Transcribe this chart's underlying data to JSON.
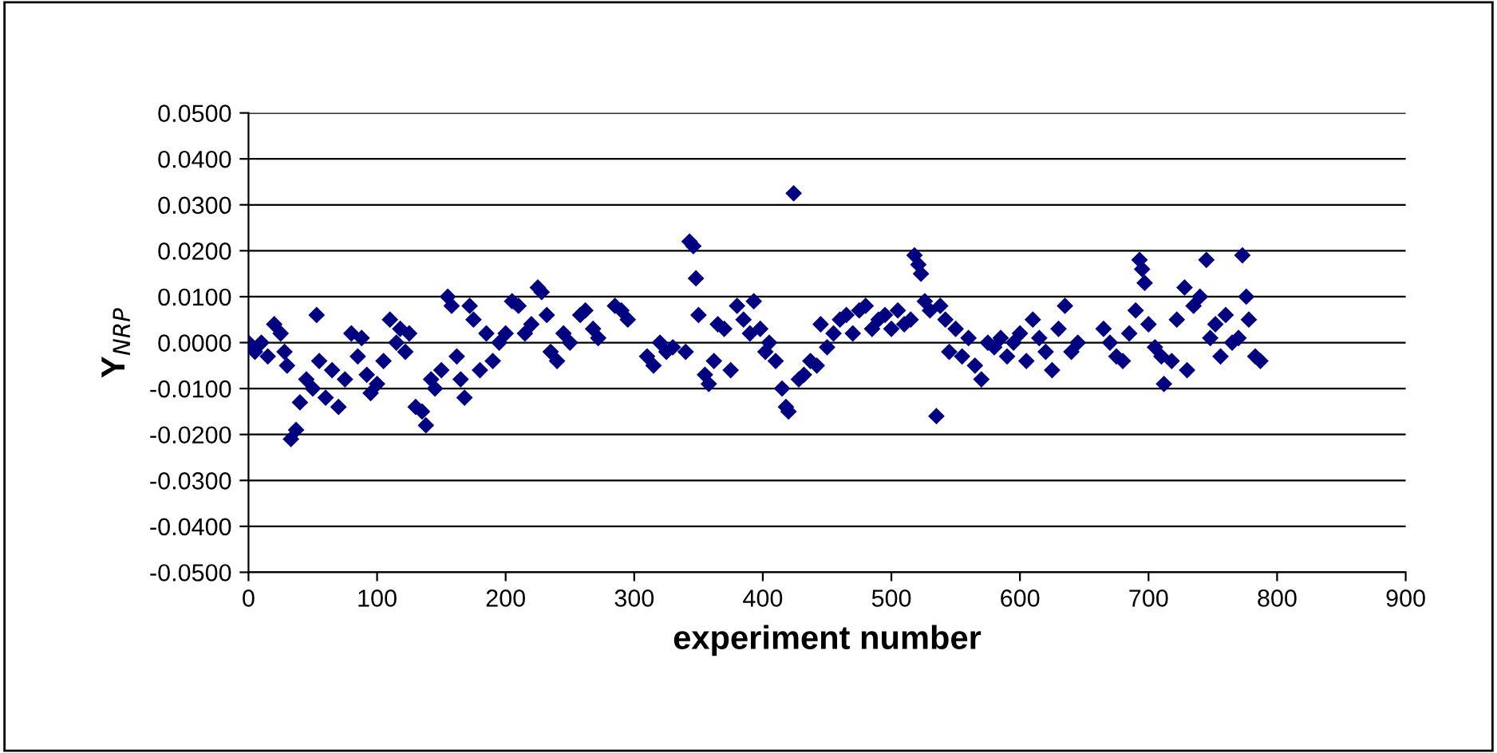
{
  "chart_data": {
    "type": "scatter",
    "xlabel": "experiment number",
    "ylabel": "Y$_{NRP}$",
    "color": "#000080",
    "marker": "diamond",
    "grid": "y",
    "legend": false,
    "x": [
      0,
      5,
      10,
      15,
      20,
      25,
      28,
      30,
      33,
      37,
      40,
      45,
      50,
      53,
      55,
      60,
      65,
      70,
      75,
      80,
      85,
      88,
      92,
      95,
      100,
      105,
      110,
      115,
      118,
      122,
      125,
      130,
      135,
      138,
      142,
      145,
      150,
      155,
      158,
      162,
      165,
      168,
      172,
      175,
      180,
      185,
      190,
      195,
      200,
      205,
      210,
      215,
      220,
      225,
      228,
      232,
      235,
      240,
      245,
      250,
      258,
      262,
      268,
      272,
      285,
      290,
      295,
      310,
      315,
      320,
      325,
      330,
      340,
      343,
      346,
      348,
      350,
      355,
      358,
      362,
      365,
      370,
      375,
      380,
      385,
      390,
      393,
      398,
      402,
      405,
      410,
      415,
      418,
      420,
      424,
      428,
      432,
      437,
      442,
      445,
      450,
      455,
      460,
      465,
      470,
      475,
      480,
      485,
      490,
      495,
      500,
      505,
      510,
      515,
      518,
      521,
      523,
      526,
      530,
      535,
      538,
      542,
      545,
      550,
      555,
      560,
      565,
      570,
      575,
      580,
      585,
      590,
      595,
      600,
      605,
      610,
      615,
      620,
      625,
      630,
      635,
      640,
      645,
      665,
      670,
      675,
      680,
      685,
      690,
      693,
      695,
      697,
      700,
      705,
      710,
      712,
      718,
      722,
      728,
      730,
      735,
      740,
      745,
      748,
      752,
      756,
      760,
      765,
      770,
      773,
      776,
      778,
      783,
      787
    ],
    "values": [
      0.0,
      -0.002,
      0.0,
      -0.003,
      0.004,
      0.002,
      -0.002,
      -0.005,
      -0.021,
      -0.019,
      -0.013,
      -0.008,
      -0.01,
      0.006,
      -0.004,
      -0.012,
      -0.006,
      -0.014,
      -0.008,
      0.002,
      -0.003,
      0.001,
      -0.007,
      -0.011,
      -0.009,
      -0.004,
      0.005,
      0.0,
      0.003,
      -0.002,
      0.002,
      -0.014,
      -0.015,
      -0.018,
      -0.008,
      -0.01,
      -0.006,
      0.01,
      0.008,
      -0.003,
      -0.008,
      -0.012,
      0.008,
      0.005,
      -0.006,
      0.002,
      -0.004,
      0.0,
      0.002,
      0.009,
      0.008,
      0.002,
      0.004,
      0.012,
      0.011,
      0.006,
      -0.002,
      -0.004,
      0.002,
      0.0,
      0.006,
      0.007,
      0.003,
      0.001,
      0.008,
      0.007,
      0.005,
      -0.003,
      -0.005,
      0.0,
      -0.002,
      -0.001,
      -0.002,
      0.022,
      0.021,
      0.014,
      0.006,
      -0.007,
      -0.009,
      -0.004,
      0.004,
      0.003,
      -0.006,
      0.008,
      0.005,
      0.002,
      0.009,
      0.003,
      -0.002,
      0.0,
      -0.004,
      -0.01,
      -0.014,
      -0.015,
      0.0325,
      -0.008,
      -0.007,
      -0.004,
      -0.005,
      0.004,
      -0.001,
      0.002,
      0.005,
      0.006,
      0.002,
      0.007,
      0.008,
      0.003,
      0.005,
      0.006,
      0.003,
      0.007,
      0.004,
      0.005,
      0.019,
      0.017,
      0.015,
      0.009,
      0.007,
      -0.016,
      0.008,
      0.005,
      -0.002,
      0.003,
      -0.003,
      0.001,
      -0.005,
      -0.008,
      0.0,
      -0.001,
      0.001,
      -0.003,
      0.0,
      0.002,
      -0.004,
      0.005,
      0.001,
      -0.002,
      -0.006,
      0.003,
      0.008,
      -0.002,
      0.0,
      0.003,
      0.0,
      -0.003,
      -0.004,
      0.002,
      0.007,
      0.018,
      0.016,
      0.013,
      0.004,
      -0.001,
      -0.003,
      -0.009,
      -0.004,
      0.005,
      0.012,
      -0.006,
      0.008,
      0.01,
      0.018,
      0.001,
      0.004,
      -0.003,
      0.006,
      0.0,
      0.001,
      0.019,
      0.01,
      0.005,
      -0.003,
      -0.004
    ],
    "xlim": [
      0,
      900
    ],
    "xticks": [
      0,
      100,
      200,
      300,
      400,
      500,
      600,
      700,
      800,
      900
    ],
    "ylim": [
      -0.05,
      0.05
    ],
    "yticks": [
      {
        "value": -0.05,
        "label": "-0.0500"
      },
      {
        "value": -0.04,
        "label": "-0.0400"
      },
      {
        "value": -0.03,
        "label": "-0.0300"
      },
      {
        "value": -0.02,
        "label": "-0.0200"
      },
      {
        "value": -0.01,
        "label": "-0.0100"
      },
      {
        "value": 0,
        "label": "0.0000"
      },
      {
        "value": 0.01,
        "label": "0.0100"
      },
      {
        "value": 0.02,
        "label": "0.0200"
      },
      {
        "value": 0.03,
        "label": "0.0300"
      },
      {
        "value": 0.04,
        "label": "0.0400"
      },
      {
        "value": 0.05,
        "label": "0.0500"
      }
    ]
  }
}
